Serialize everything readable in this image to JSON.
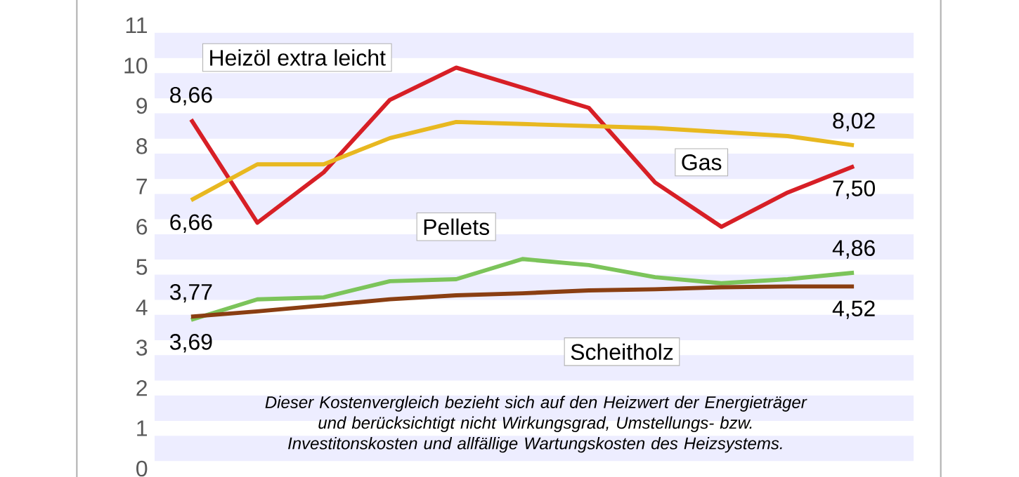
{
  "chart_data": {
    "type": "line",
    "categories": [
      null,
      null,
      null,
      null,
      null,
      null,
      null,
      null,
      null,
      null,
      null
    ],
    "series": [
      {
        "name": "Heizöl extra leicht",
        "color": "#d71f26",
        "values": [
          8.66,
          6.1,
          7.35,
          9.15,
          9.95,
          9.45,
          8.95,
          7.1,
          6.0,
          6.85,
          7.5
        ],
        "value_labels": [
          "8,66",
          null,
          null,
          null,
          null,
          null,
          null,
          null,
          null,
          null,
          "7,50"
        ]
      },
      {
        "name": "Gas",
        "color": "#e8b820",
        "values": [
          6.66,
          7.55,
          7.55,
          8.2,
          8.6,
          8.55,
          8.5,
          8.45,
          8.35,
          8.25,
          8.02
        ],
        "value_labels": [
          "6,66",
          null,
          null,
          null,
          null,
          null,
          null,
          null,
          null,
          null,
          "8,02"
        ]
      },
      {
        "name": "Pellets",
        "color": "#7cc45a",
        "values": [
          3.69,
          4.2,
          4.25,
          4.65,
          4.7,
          5.2,
          5.05,
          4.75,
          4.6,
          4.7,
          4.86
        ],
        "value_labels": [
          "3,69",
          null,
          null,
          null,
          null,
          null,
          null,
          null,
          null,
          null,
          "4,86"
        ]
      },
      {
        "name": "Scheitholz",
        "color": "#8a3e12",
        "values": [
          3.77,
          3.9,
          4.05,
          4.2,
          4.3,
          4.35,
          4.42,
          4.45,
          4.5,
          4.52,
          4.52
        ],
        "value_labels": [
          "3,77",
          null,
          null,
          null,
          null,
          null,
          null,
          null,
          null,
          null,
          "4,52"
        ]
      }
    ],
    "ylim": [
      0,
      11
    ],
    "yticks": [
      0,
      1,
      2,
      3,
      4,
      5,
      6,
      7,
      8,
      9,
      10,
      11
    ],
    "grid": "y",
    "tick_labels": "y",
    "legend": false,
    "annotations": [
      "Dieser Kostenvergleich bezieht sich auf den Heizwert der Energieträger und berücksichtigt nicht Wirkungsgrad, Umstellungs- bzw. Investitonskosten und allfällige Wartungskosten des Heizsystems."
    ]
  }
}
